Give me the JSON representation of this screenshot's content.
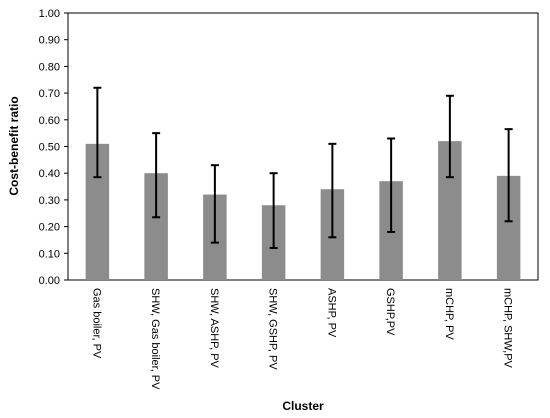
{
  "chart_data": {
    "type": "bar",
    "xlabel": "Cluster",
    "ylabel": "Cost-benefit ratio",
    "ylim": [
      0,
      1
    ],
    "yticks": [
      "0.00",
      "0.10",
      "0.20",
      "0.30",
      "0.40",
      "0.50",
      "0.60",
      "0.70",
      "0.80",
      "0.90",
      "1.00"
    ],
    "categories": [
      "Gas boiler, PV",
      "SHW, Gas boiler, PV",
      "SHW, ASHP, PV",
      "SHW, GSHP, PV",
      "ASHP, PV",
      "GSHP,PV",
      "mCHP, PV",
      "mCHP, SHW,PV"
    ],
    "values": [
      0.51,
      0.4,
      0.32,
      0.28,
      0.34,
      0.37,
      0.52,
      0.39
    ],
    "error_low": [
      0.385,
      0.235,
      0.14,
      0.12,
      0.16,
      0.18,
      0.385,
      0.22
    ],
    "error_high": [
      0.72,
      0.55,
      0.43,
      0.4,
      0.51,
      0.53,
      0.69,
      0.565
    ],
    "bar_color": "#8c8c8c",
    "error_color": "#000000",
    "grid": false,
    "legend": "none"
  }
}
